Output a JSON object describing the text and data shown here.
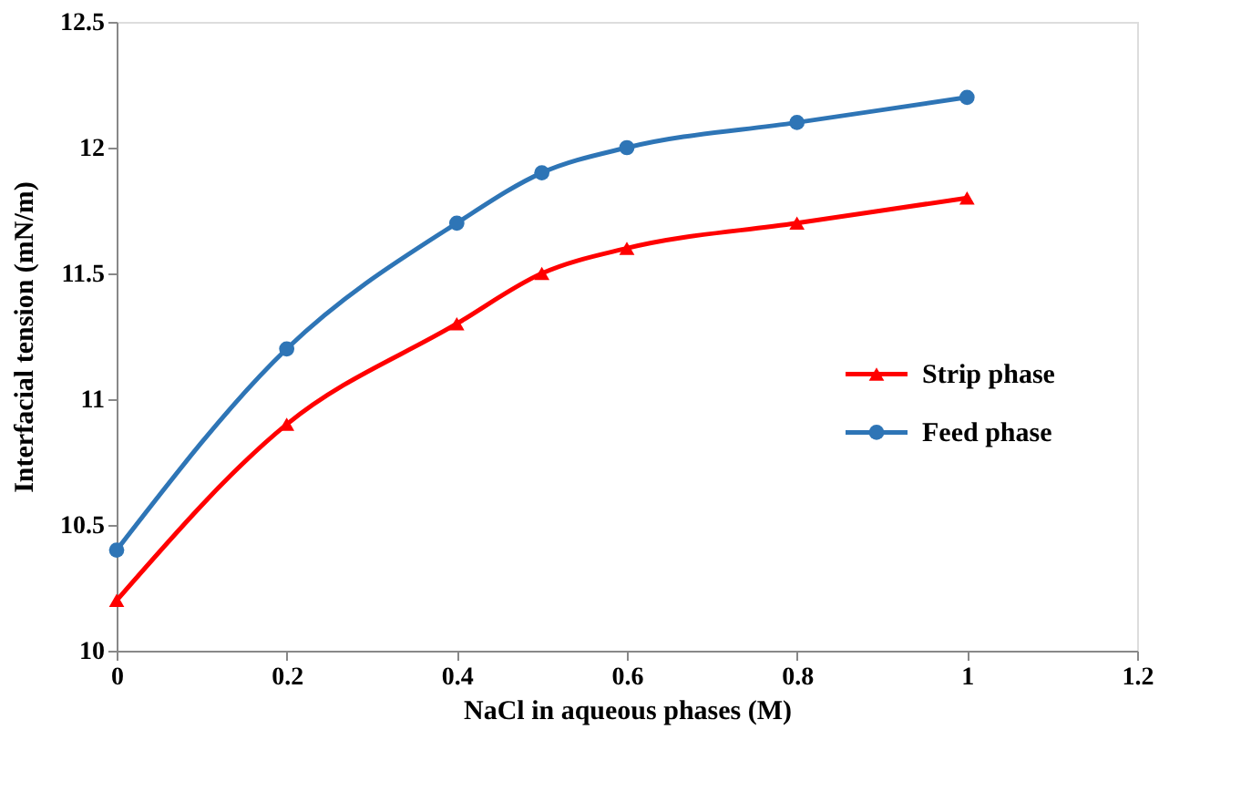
{
  "chart_data": {
    "type": "line",
    "xlabel": "NaCl  in aqueous phases (M)",
    "ylabel": "Interfacial tension (mN/m)",
    "x": [
      0,
      0.2,
      0.4,
      0.5,
      0.6,
      0.8,
      1
    ],
    "series": [
      {
        "name": "Strip phase",
        "color": "#ff0000",
        "marker": "triangle",
        "values": [
          10.2,
          10.9,
          11.3,
          11.5,
          11.6,
          11.7,
          11.8
        ]
      },
      {
        "name": "Feed phase",
        "color": "#2e75b6",
        "marker": "circle",
        "values": [
          10.4,
          11.2,
          11.7,
          11.9,
          12.0,
          12.1,
          12.2
        ]
      }
    ],
    "xlim": [
      0,
      1.2
    ],
    "xticks": [
      0,
      0.2,
      0.4,
      0.6,
      0.8,
      1,
      1.2
    ],
    "ylim": [
      10,
      12.5
    ],
    "yticks": [
      10,
      10.5,
      11,
      11.5,
      12,
      12.5
    ],
    "grid": false,
    "legend": "right",
    "line_style": "solid"
  }
}
